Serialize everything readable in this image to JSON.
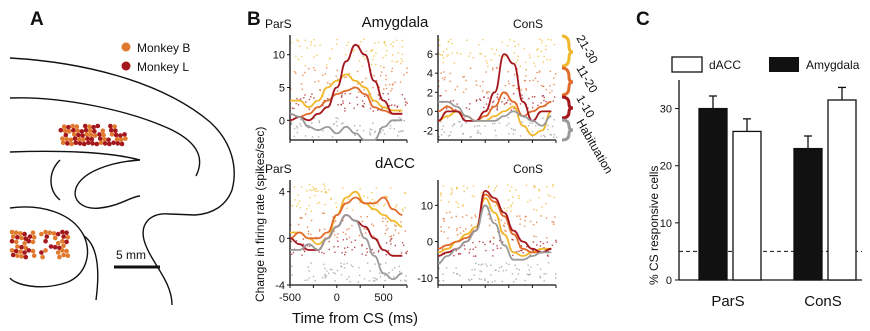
{
  "panels": {
    "a": "A",
    "b": "B",
    "c": "C"
  },
  "panel_a": {
    "legend": [
      {
        "name": "Monkey B",
        "color": "#e07a2e"
      },
      {
        "name": "Monkey L",
        "color": "#a3171d"
      }
    ],
    "scale_bar": "5 mm"
  },
  "panel_b": {
    "region_titles": [
      "Amygdala",
      "dACC"
    ],
    "condition_labels": [
      "ParS",
      "ConS"
    ],
    "ylabel": "Change in firing rate (spikes/sec)",
    "xlabel": "Time from CS (ms)",
    "trial_groups": [
      {
        "name": "21-30",
        "color": "#f0b82a"
      },
      {
        "name": "11-20",
        "color": "#e06b2a"
      },
      {
        "name": "1-10",
        "color": "#a3171d"
      },
      {
        "name": "Habituation",
        "color": "#9a9a9a"
      }
    ],
    "colors": {
      "t21_30": "#f0b82a",
      "t11_20": "#e06b2a",
      "t1_10": "#a3171d",
      "hab": "#9a9a9a"
    }
  },
  "chart_data": [
    {
      "type": "line",
      "panel": "Amygdala ParS",
      "x": [
        -500,
        -400,
        -300,
        -200,
        -100,
        0,
        100,
        200,
        300,
        400,
        500,
        600,
        700
      ],
      "ylim": [
        -3,
        13
      ],
      "yticks": [
        0,
        5,
        10
      ],
      "series": [
        {
          "name": "21-30",
          "values": [
            3,
            3,
            2,
            3,
            5,
            6,
            7,
            6,
            5,
            3,
            2,
            1.5,
            1.5
          ]
        },
        {
          "name": "11-20",
          "values": [
            1,
            0.5,
            1,
            2,
            3,
            4,
            4.5,
            5,
            4,
            2,
            1.5,
            1,
            1
          ]
        },
        {
          "name": "1-10",
          "values": [
            0,
            0.5,
            0,
            1,
            2,
            5,
            9,
            11.5,
            10,
            6,
            3,
            1,
            1
          ]
        },
        {
          "name": "Habituation",
          "values": [
            1,
            0.5,
            -1,
            -1.5,
            -1,
            -2,
            -1,
            -2,
            -3,
            -3,
            -1,
            0,
            0
          ]
        }
      ]
    },
    {
      "type": "line",
      "panel": "Amygdala ConS",
      "x": [
        -500,
        -400,
        -300,
        -200,
        -100,
        0,
        100,
        200,
        300,
        400,
        500,
        600,
        700
      ],
      "ylim": [
        -3,
        8
      ],
      "yticks": [
        -2,
        0,
        2,
        4,
        6
      ],
      "series": [
        {
          "name": "21-30",
          "values": [
            -1,
            -0.5,
            0,
            -0.5,
            -1,
            -1,
            -0.5,
            0,
            0.5,
            -1.5,
            -2.5,
            -2,
            0
          ]
        },
        {
          "name": "11-20",
          "values": [
            0,
            0.5,
            0,
            -0.5,
            -1,
            -0.5,
            0.5,
            2,
            1,
            -0.5,
            0,
            0.5,
            1
          ]
        },
        {
          "name": "1-10",
          "values": [
            -1,
            0,
            0,
            -1,
            -1,
            0,
            2,
            6,
            5,
            1,
            -1,
            0,
            0
          ]
        },
        {
          "name": "Habituation",
          "values": [
            1,
            1,
            0.5,
            -0.5,
            -1,
            -1,
            -1,
            -0.5,
            0,
            -0.5,
            -1,
            -1.5,
            -0.5
          ]
        }
      ]
    },
    {
      "type": "line",
      "panel": "dACC ParS",
      "x": [
        -500,
        -400,
        -300,
        -200,
        -100,
        0,
        100,
        200,
        300,
        400,
        500,
        600,
        700
      ],
      "ylim": [
        -4,
        5
      ],
      "yticks": [
        -4,
        0,
        4
      ],
      "series": [
        {
          "name": "21-30",
          "values": [
            0.5,
            0.5,
            0,
            -0.5,
            0,
            2,
            3.5,
            4,
            3,
            2.5,
            2,
            1.5,
            1
          ]
        },
        {
          "name": "11-20",
          "values": [
            0,
            0.5,
            0,
            0,
            0.5,
            2,
            3,
            3.5,
            3,
            3,
            3.5,
            2.5,
            2
          ]
        },
        {
          "name": "1-10",
          "values": [
            0,
            -0.5,
            -1,
            -1,
            0,
            1,
            2,
            1.5,
            1,
            0,
            -1,
            -1.5,
            -1.5
          ]
        },
        {
          "name": "Habituation",
          "values": [
            -1,
            -1,
            -0.5,
            -1,
            0,
            1,
            2,
            1.5,
            0,
            -1.5,
            -3,
            -3.5,
            -3
          ]
        }
      ]
    },
    {
      "type": "line",
      "panel": "dACC ConS",
      "x": [
        -500,
        -400,
        -300,
        -200,
        -100,
        0,
        100,
        200,
        300,
        400,
        500,
        600,
        700
      ],
      "ylim": [
        -12,
        17
      ],
      "yticks": [
        -10,
        0,
        10
      ],
      "series": [
        {
          "name": "21-30",
          "values": [
            -3,
            -2,
            0,
            2,
            4,
            12,
            8,
            2,
            -3,
            -4,
            -3,
            -2,
            -2
          ]
        },
        {
          "name": "11-20",
          "values": [
            -2,
            -1,
            0,
            1,
            3,
            13,
            11,
            7,
            2,
            -2,
            -3,
            -3,
            -2
          ]
        },
        {
          "name": "1-10",
          "values": [
            -4,
            -3,
            -2,
            0,
            3,
            14,
            12,
            8,
            3,
            0,
            -2,
            -3,
            -2
          ]
        },
        {
          "name": "Habituation",
          "values": [
            -6,
            -4,
            -2,
            0,
            3,
            10,
            5,
            -1,
            -5,
            -5,
            -4,
            -3,
            -3
          ]
        }
      ]
    },
    {
      "type": "bar",
      "panel": "C",
      "categories": [
        "ParS",
        "ConS"
      ],
      "ylabel": "% CS responsive cells",
      "ylim": [
        0,
        35
      ],
      "yticks": [
        0,
        10,
        20,
        30
      ],
      "chance_level": 5,
      "series": [
        {
          "name": "Amygdala",
          "color": "#111111",
          "values": [
            30,
            23
          ],
          "errors": [
            2.2,
            2.2
          ]
        },
        {
          "name": "dACC",
          "color": "#ffffff",
          "values": [
            26,
            31.5
          ],
          "errors": [
            2.2,
            2.2
          ]
        }
      ]
    }
  ]
}
